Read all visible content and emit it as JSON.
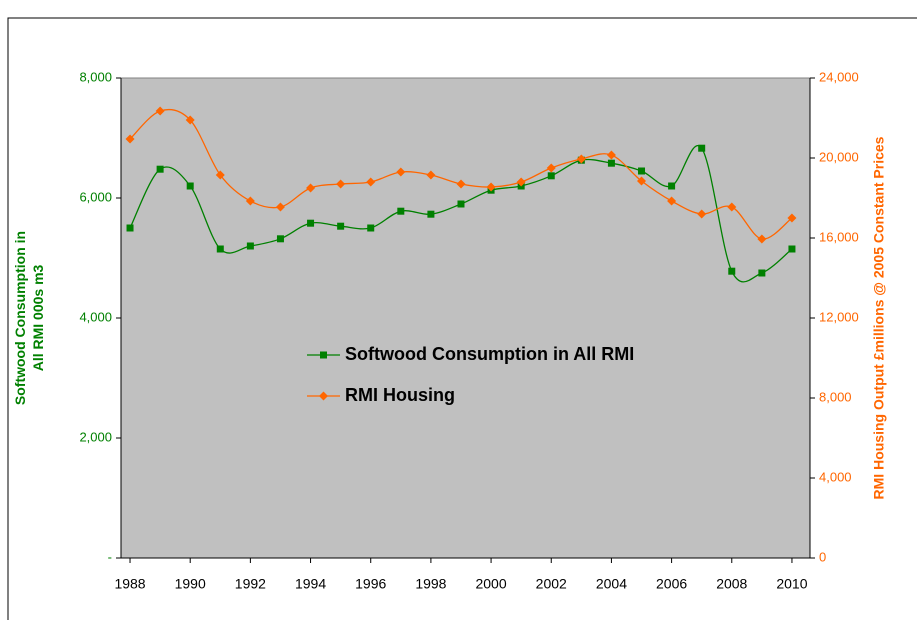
{
  "chart_data": {
    "type": "line",
    "x": [
      1988,
      1989,
      1990,
      1991,
      1992,
      1993,
      1994,
      1995,
      1996,
      1997,
      1998,
      1999,
      2000,
      2001,
      2002,
      2003,
      2004,
      2005,
      2006,
      2007,
      2008,
      2009,
      2010
    ],
    "xlim": [
      1987.7,
      2010.6
    ],
    "xticks": [
      1988,
      1990,
      1992,
      1994,
      1996,
      1998,
      2000,
      2002,
      2004,
      2006,
      2008,
      2010
    ],
    "ylim": [
      0,
      8000
    ],
    "yticks": [
      {
        "value": 0,
        "label": "-"
      },
      {
        "value": 2000,
        "label": "2,000"
      },
      {
        "value": 4000,
        "label": "4,000"
      },
      {
        "value": 6000,
        "label": "6,000"
      },
      {
        "value": 8000,
        "label": "8,000"
      }
    ],
    "y2lim": [
      0,
      24000
    ],
    "y2ticks": [
      0,
      {
        "value": 4000,
        "label": "4,000"
      },
      {
        "value": 8000,
        "label": "8,000"
      },
      {
        "value": 12000,
        "label": "12,000"
      },
      {
        "value": 16000,
        "label": "16,000"
      },
      {
        "value": 20000,
        "label": "20,000"
      },
      {
        "value": 24000,
        "label": "24,000"
      }
    ],
    "ylabel": [
      "Softwood Consumption in",
      "All RMI 000s m3"
    ],
    "y2label": "RMI Housing Output £millions @ 2005 Constant Prices",
    "series": [
      {
        "name": "Softwood Consumption in All RMI",
        "color": "#008000",
        "marker": "square",
        "values": [
          5500,
          6480,
          6200,
          5150,
          5200,
          5320,
          5580,
          5530,
          5500,
          5780,
          5730,
          5900,
          6130,
          6200,
          6370,
          6630,
          6580,
          6450,
          6200,
          6830,
          4780,
          4750,
          5150
        ]
      },
      {
        "name": "RMI Housing",
        "color": "#ff6600",
        "marker": "diamond",
        "axis": "y2",
        "values": [
          20950,
          22350,
          21900,
          19150,
          17850,
          17550,
          18500,
          18700,
          18800,
          19300,
          19150,
          18700,
          18550,
          18800,
          19500,
          19950,
          20150,
          18850,
          17850,
          17200,
          17550,
          15950,
          17000
        ]
      }
    ]
  }
}
